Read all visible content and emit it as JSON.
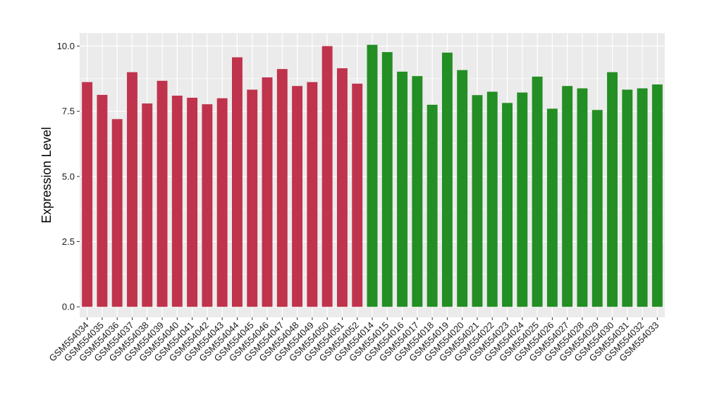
{
  "chart_data": {
    "type": "bar",
    "title": "",
    "xlabel": "",
    "ylabel": "Expression Level",
    "ylim": [
      -0.4,
      10.5
    ],
    "yticks": [
      0.0,
      2.5,
      5.0,
      7.5,
      10.0
    ],
    "ytick_labels": [
      "0.0",
      "2.5",
      "5.0",
      "7.5",
      "10.0"
    ],
    "grid": true,
    "legend": "none",
    "panel_color": "#ebebeb",
    "grid_color": "#ffffff",
    "categories": [
      "GSM554034",
      "GSM554035",
      "GSM554036",
      "GSM554037",
      "GSM554038",
      "GSM554039",
      "GSM554040",
      "GSM554041",
      "GSM554042",
      "GSM554043",
      "GSM554044",
      "GSM554045",
      "GSM554046",
      "GSM554047",
      "GSM554048",
      "GSM554049",
      "GSM554050",
      "GSM554051",
      "GSM554052",
      "GSM554014",
      "GSM554015",
      "GSM554016",
      "GSM554017",
      "GSM554018",
      "GSM554019",
      "GSM554020",
      "GSM554021",
      "GSM554022",
      "GSM554023",
      "GSM554024",
      "GSM554025",
      "GSM554026",
      "GSM554027",
      "GSM554028",
      "GSM554029",
      "GSM554030",
      "GSM554031",
      "GSM554032",
      "GSM554033"
    ],
    "values": [
      8.62,
      8.13,
      7.2,
      9.0,
      7.8,
      8.67,
      8.1,
      8.02,
      7.77,
      8.0,
      9.57,
      8.33,
      8.8,
      9.12,
      8.47,
      8.62,
      10.0,
      9.15,
      8.56,
      10.05,
      9.77,
      9.02,
      8.85,
      7.75,
      9.75,
      9.08,
      8.12,
      8.25,
      7.82,
      8.22,
      8.83,
      7.6,
      8.47,
      8.38,
      7.55,
      9.0,
      8.33,
      8.38,
      8.53
    ],
    "colors": [
      "#c0334d",
      "#c0334d",
      "#c0334d",
      "#c0334d",
      "#c0334d",
      "#c0334d",
      "#c0334d",
      "#c0334d",
      "#c0334d",
      "#c0334d",
      "#c0334d",
      "#c0334d",
      "#c0334d",
      "#c0334d",
      "#c0334d",
      "#c0334d",
      "#c0334d",
      "#c0334d",
      "#c0334d",
      "#238e23",
      "#238e23",
      "#238e23",
      "#238e23",
      "#238e23",
      "#238e23",
      "#238e23",
      "#238e23",
      "#238e23",
      "#238e23",
      "#238e23",
      "#238e23",
      "#238e23",
      "#238e23",
      "#238e23",
      "#238e23",
      "#238e23",
      "#238e23",
      "#238e23",
      "#238e23"
    ]
  }
}
